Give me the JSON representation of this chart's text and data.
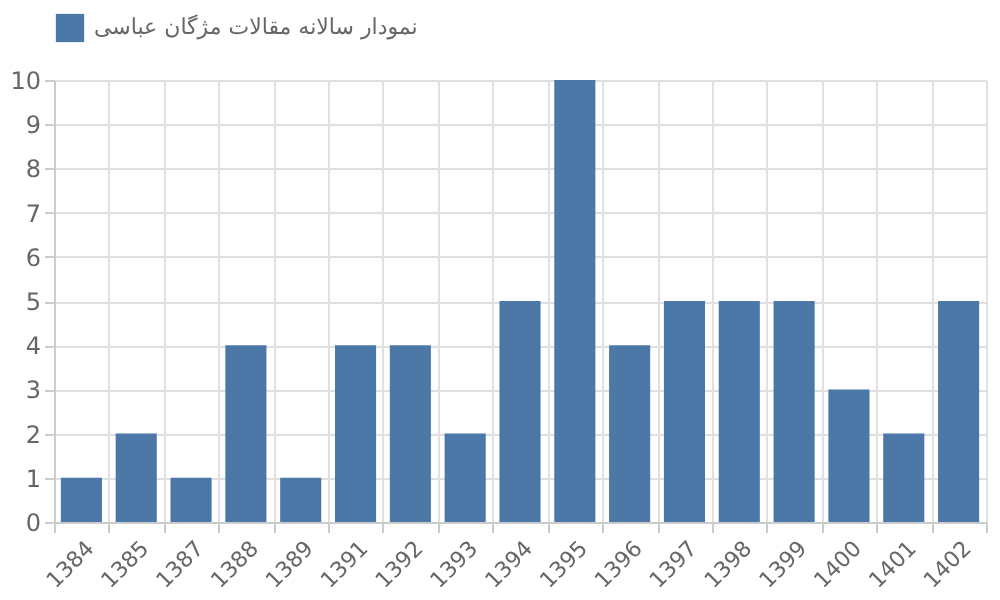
{
  "chart_data": {
    "type": "bar",
    "categories": [
      "1384",
      "1385",
      "1387",
      "1388",
      "1389",
      "1391",
      "1392",
      "1393",
      "1394",
      "1395",
      "1396",
      "1397",
      "1398",
      "1399",
      "1400",
      "1401",
      "1402"
    ],
    "series": [
      {
        "name": "نمودار سالانه مقالات مژگان عباسی",
        "color": "#4c78a8",
        "values": [
          1,
          2,
          1,
          4,
          1,
          4,
          4,
          2,
          5,
          10,
          4,
          5,
          5,
          5,
          3,
          2,
          5
        ]
      }
    ],
    "ylim": [
      0,
      10
    ],
    "yticks": [
      0,
      1,
      2,
      3,
      4,
      5,
      6,
      7,
      8,
      9,
      10
    ],
    "grid": true,
    "legend": "top"
  }
}
